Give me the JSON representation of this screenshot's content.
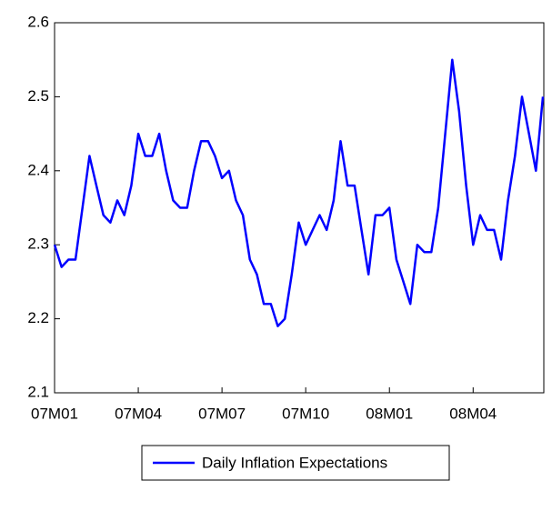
{
  "chart_data": {
    "type": "line",
    "categories": [
      "07M01",
      null,
      null,
      null,
      null,
      null,
      null,
      null,
      null,
      null,
      null,
      null,
      "07M04",
      null,
      null,
      null,
      null,
      null,
      null,
      null,
      null,
      null,
      null,
      null,
      "07M07",
      null,
      null,
      null,
      null,
      null,
      null,
      null,
      null,
      null,
      null,
      null,
      "07M10",
      null,
      null,
      null,
      null,
      null,
      null,
      null,
      null,
      null,
      null,
      null,
      "08M01",
      null,
      null,
      null,
      null,
      null,
      null,
      null,
      null,
      null,
      null,
      null,
      "08M04",
      null,
      null,
      null,
      null,
      null,
      null,
      null,
      null,
      null,
      null
    ],
    "series": [
      {
        "name": "Daily Inflation Expectations",
        "color": "#0000ff",
        "values": [
          2.3,
          2.27,
          2.28,
          2.28,
          2.35,
          2.42,
          2.38,
          2.34,
          2.33,
          2.36,
          2.34,
          2.38,
          2.45,
          2.42,
          2.42,
          2.45,
          2.4,
          2.36,
          2.35,
          2.35,
          2.4,
          2.44,
          2.44,
          2.42,
          2.39,
          2.4,
          2.36,
          2.34,
          2.28,
          2.26,
          2.22,
          2.22,
          2.19,
          2.2,
          2.26,
          2.33,
          2.3,
          2.32,
          2.34,
          2.32,
          2.36,
          2.44,
          2.38,
          2.38,
          2.32,
          2.26,
          2.34,
          2.34,
          2.35,
          2.28,
          2.25,
          2.22,
          2.3,
          2.29,
          2.29,
          2.35,
          2.45,
          2.55,
          2.48,
          2.38,
          2.3,
          2.34,
          2.32,
          2.32,
          2.28,
          2.36,
          2.42,
          2.5,
          2.45,
          2.4,
          2.5
        ]
      }
    ],
    "ylim": [
      2.1,
      2.6
    ],
    "yticks": [
      2.1,
      2.2,
      2.3,
      2.4,
      2.5,
      2.6
    ],
    "grid": false,
    "legend": "bottom"
  }
}
